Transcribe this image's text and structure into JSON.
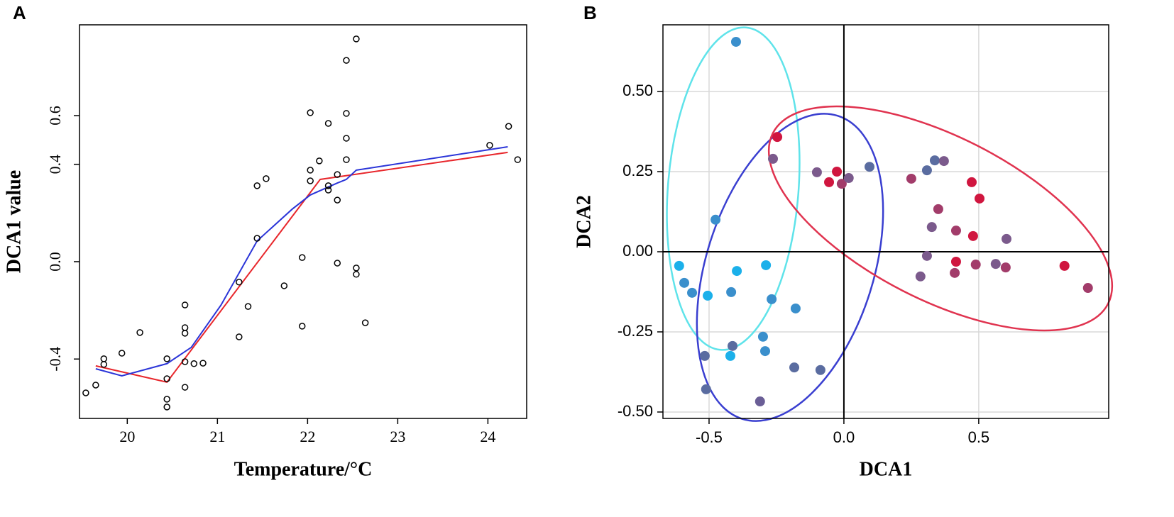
{
  "chart_data": [
    {
      "type": "scatter",
      "panel_label": "A",
      "x_label": "Temperature/°C",
      "y_label": "DCA1 value",
      "xlim": [
        19.47,
        24.43
      ],
      "xticks": [
        20,
        21,
        22,
        23,
        24
      ],
      "ylim": [
        -0.644,
        0.973
      ],
      "yticks": [
        -0.4,
        {
          "value": 0,
          "label": "0.0"
        },
        0.4,
        0.6
      ],
      "grid": false,
      "points": {
        "color": "#000000",
        "x": [
          19.54,
          19.65,
          19.74,
          19.74,
          19.94,
          20.14,
          20.44,
          20.44,
          20.44,
          20.44,
          20.64,
          20.64,
          20.64,
          20.64,
          20.64,
          20.74,
          20.84,
          21.24,
          21.24,
          21.34,
          21.44,
          21.44,
          21.54,
          21.74,
          21.94,
          21.94,
          22.03,
          22.03,
          22.03,
          22.13,
          22.23,
          22.23,
          22.23,
          22.33,
          22.33,
          22.33,
          22.43,
          22.43,
          22.43,
          22.43,
          22.54,
          22.54,
          22.54,
          22.64,
          24.02,
          24.23,
          24.33
        ],
        "values": [
          -0.539,
          -0.507,
          -0.399,
          -0.422,
          -0.376,
          -0.291,
          -0.399,
          -0.481,
          -0.565,
          -0.597,
          -0.178,
          -0.271,
          -0.294,
          -0.411,
          -0.516,
          -0.419,
          -0.417,
          -0.084,
          -0.309,
          -0.184,
          0.096,
          0.312,
          0.341,
          -0.099,
          0.017,
          -0.265,
          0.612,
          0.376,
          0.332,
          0.414,
          0.568,
          0.312,
          0.294,
          0.358,
          0.253,
          -0.006,
          0.827,
          0.609,
          0.507,
          0.419,
          0.915,
          -0.026,
          -0.052,
          -0.251,
          0.478,
          0.556,
          0.419
        ]
      },
      "series": [
        {
          "color": "#e8262b",
          "x": [
            19.65,
            20.44,
            22.14,
            24.22
          ],
          "values": [
            -0.428,
            -0.495,
            0.338,
            0.449
          ]
        },
        {
          "color": "#2b35d8",
          "x": [
            19.65,
            19.94,
            20.44,
            20.71,
            21.04,
            21.44,
            21.83,
            22.03,
            22.33,
            22.43,
            22.54,
            24.22
          ],
          "values": [
            -0.44,
            -0.469,
            -0.419,
            -0.352,
            -0.178,
            0.085,
            0.216,
            0.274,
            0.323,
            0.338,
            0.376,
            0.472
          ]
        }
      ]
    },
    {
      "type": "scatter",
      "panel_label": "B",
      "x_label": "DCA1",
      "y_label": "DCA2",
      "xlim": [
        -0.671,
        0.982
      ],
      "xticks": [
        -0.5,
        {
          "value": 0,
          "label": "0.0"
        },
        0.5
      ],
      "ylim": [
        -0.52,
        0.708
      ],
      "yticks": [
        {
          "value": -0.5,
          "label": "-0.50"
        },
        {
          "value": -0.25,
          "label": "-0.25"
        },
        {
          "value": 0,
          "label": "0.00"
        },
        {
          "value": 0.25,
          "label": "0.25"
        },
        {
          "value": 0.5,
          "label": "0.50"
        }
      ],
      "grid": true,
      "zero_lines": true,
      "points": {
        "x": [
          -0.4,
          -0.247,
          -0.263,
          -0.1,
          -0.026,
          -0.055,
          -0.008,
          0.018,
          0.095,
          0.25,
          0.308,
          0.337,
          0.371,
          0.474,
          0.503,
          0.35,
          0.326,
          0.416,
          0.479,
          0.603,
          0.308,
          0.416,
          0.489,
          0.563,
          0.6,
          0.818,
          0.905,
          0.284,
          0.411,
          -0.476,
          -0.592,
          -0.611,
          -0.563,
          -0.505,
          -0.397,
          -0.418,
          -0.289,
          -0.268,
          -0.179,
          -0.3,
          -0.413,
          -0.421,
          -0.516,
          -0.292,
          -0.184,
          -0.087,
          -0.511,
          -0.311
        ],
        "values": [
          0.655,
          0.358,
          0.29,
          0.248,
          0.25,
          0.217,
          0.212,
          0.23,
          0.265,
          0.228,
          0.254,
          0.285,
          0.283,
          0.217,
          0.166,
          0.133,
          0.077,
          0.066,
          0.049,
          0.04,
          -0.013,
          -0.031,
          -0.04,
          -0.038,
          -0.049,
          -0.044,
          -0.113,
          -0.077,
          -0.066,
          0.1,
          -0.097,
          -0.044,
          -0.128,
          -0.137,
          -0.06,
          -0.126,
          -0.042,
          -0.148,
          -0.177,
          -0.265,
          -0.294,
          -0.325,
          -0.325,
          -0.31,
          -0.361,
          -0.369,
          -0.429,
          -0.467
        ],
        "colors": [
          "#3a8fcc",
          "#d0163f",
          "#7b5a8c",
          "#7b5a8c",
          "#d0163f",
          "#d0163f",
          "#a23c6a",
          "#7b5a8c",
          "#5a6ca0",
          "#a23c6a",
          "#5a6ca0",
          "#5a6ca0",
          "#7b5a8c",
          "#d0163f",
          "#d0163f",
          "#a23c6a",
          "#7b5a8c",
          "#a23c6a",
          "#d0163f",
          "#7b5a8c",
          "#7b5a8c",
          "#d0163f",
          "#a23c6a",
          "#7b5a8c",
          "#a23c6a",
          "#d0163f",
          "#a23c6a",
          "#7b5a8c",
          "#a23c6a",
          "#3a8fcc",
          "#3a8fcc",
          "#1bb0ea",
          "#3a8fcc",
          "#1bb0ea",
          "#1bb0ea",
          "#3a8fcc",
          "#1bb0ea",
          "#3a8fcc",
          "#3a8fcc",
          "#3a8fcc",
          "#5a6ca0",
          "#1bb0ea",
          "#5a6ca0",
          "#3a8fcc",
          "#5a6ca0",
          "#5a6ca0",
          "#5a6ca0",
          "#6a5e96"
        ]
      },
      "series": []
    }
  ]
}
